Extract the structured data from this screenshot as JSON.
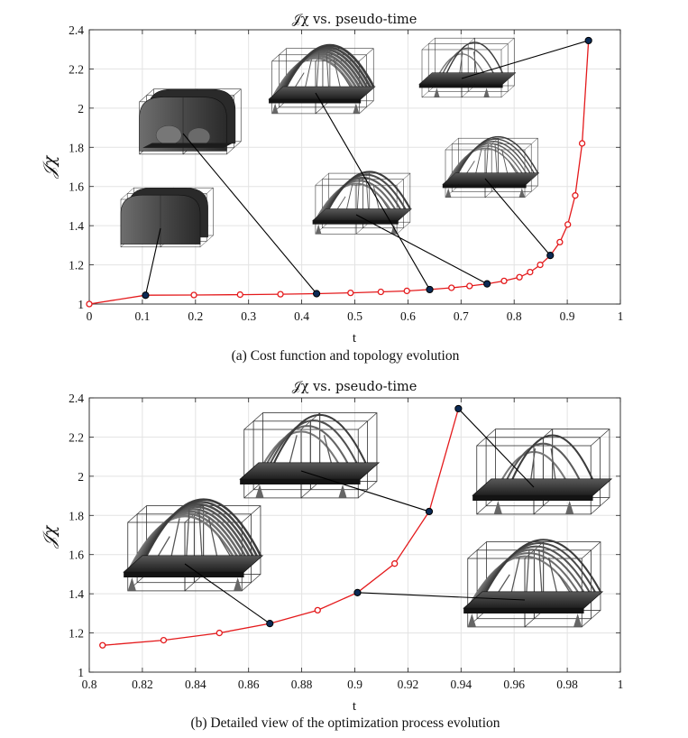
{
  "chart_data": [
    {
      "type": "line",
      "panel": "a",
      "title": "𝒥χ vs. pseudo-time",
      "xlabel": "t",
      "ylabel": "𝒥χ",
      "caption": "(a) Cost function and topology evolution",
      "xlim": [
        0,
        1
      ],
      "ylim": [
        1,
        2.4
      ],
      "xticks": [
        0,
        0.1,
        0.2,
        0.3,
        0.4,
        0.5,
        0.6,
        0.7,
        0.8,
        0.9,
        1
      ],
      "yticks": [
        1,
        1.2,
        1.4,
        1.6,
        1.8,
        2,
        2.2,
        2.4
      ],
      "grid": true,
      "line_color": "#e41a1c",
      "highlight_color": "#0b2a55",
      "x": [
        0,
        0.106,
        0.197,
        0.284,
        0.36,
        0.428,
        0.492,
        0.549,
        0.598,
        0.641,
        0.682,
        0.716,
        0.749,
        0.781,
        0.81,
        0.83,
        0.849,
        0.868,
        0.886,
        0.901,
        0.915,
        0.928,
        0.94
      ],
      "y": [
        1.0,
        1.045,
        1.046,
        1.048,
        1.05,
        1.053,
        1.057,
        1.062,
        1.067,
        1.074,
        1.083,
        1.092,
        1.103,
        1.118,
        1.137,
        1.163,
        1.2,
        1.248,
        1.316,
        1.406,
        1.554,
        1.82,
        2.345
      ],
      "highlighted": [
        1,
        5,
        9,
        12,
        17,
        22
      ]
    },
    {
      "type": "line",
      "panel": "b",
      "title": "𝒥χ vs. pseudo-time",
      "xlabel": "t",
      "ylabel": "𝒥χ",
      "caption": "(b) Detailed view of the optimization process evolution",
      "xlim": [
        0.8,
        1
      ],
      "ylim": [
        1,
        2.4
      ],
      "xticks": [
        0.8,
        0.82,
        0.84,
        0.86,
        0.88,
        0.9,
        0.92,
        0.94,
        0.96,
        0.98,
        1
      ],
      "yticks": [
        1,
        1.2,
        1.4,
        1.6,
        1.8,
        2,
        2.2,
        2.4
      ],
      "grid": true,
      "line_color": "#e41a1c",
      "highlight_color": "#0b2a55",
      "x": [
        0.805,
        0.828,
        0.849,
        0.868,
        0.886,
        0.901,
        0.915,
        0.928,
        0.939
      ],
      "y": [
        1.137,
        1.163,
        1.2,
        1.248,
        1.316,
        1.406,
        1.554,
        1.82,
        2.345
      ],
      "highlighted": [
        3,
        5,
        7,
        8
      ]
    }
  ],
  "insets": {
    "a": [
      {
        "shape": "solid-dome",
        "point_index": 1
      },
      {
        "shape": "hollow-dome",
        "point_index": 5
      },
      {
        "shape": "arch-early",
        "point_index": 9
      },
      {
        "shape": "arch-mid",
        "point_index": 12
      },
      {
        "shape": "arch-late",
        "point_index": 17
      },
      {
        "shape": "arch-final",
        "point_index": 22
      }
    ],
    "b": [
      {
        "shape": "arch-dense",
        "point_index": 3
      },
      {
        "shape": "arch-late",
        "point_index": 5
      },
      {
        "shape": "arch-thin",
        "point_index": 7
      },
      {
        "shape": "arch-final",
        "point_index": 8
      }
    ]
  }
}
